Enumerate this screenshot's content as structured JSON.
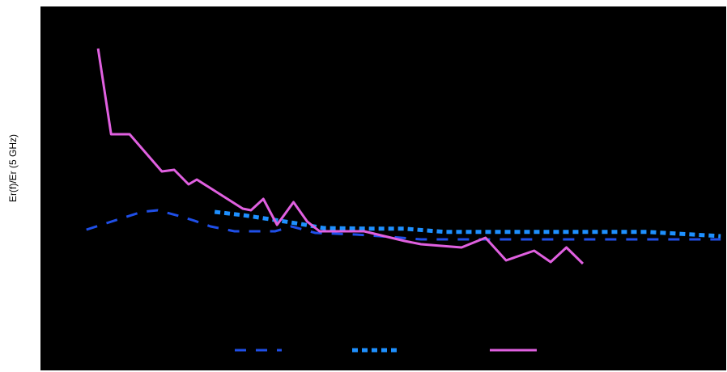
{
  "chart_data": {
    "type": "line",
    "ylabel": "Er(f)/Er (5 GHz)",
    "xlim": [
      0,
      100
    ],
    "ylim": [
      0.57,
      1.695
    ],
    "legend": "bottom",
    "background": "#000000",
    "series": [
      {
        "color": "#1f4fe8",
        "style": "dashed",
        "x": [
          6.7,
          8.9,
          11.8,
          14.8,
          17.1,
          20.1,
          22.4,
          24.8,
          28.3,
          34.2,
          36.6,
          40.1,
          46.0,
          50.8,
          55.5,
          62.6,
          76.7,
          99.2
        ],
        "values": [
          1.005,
          1.02,
          1.04,
          1.06,
          1.065,
          1.048,
          1.033,
          1.015,
          1.0,
          1.0,
          1.015,
          0.995,
          0.99,
          0.983,
          0.975,
          0.975,
          0.975,
          0.975
        ]
      },
      {
        "color": "#1e90ff",
        "style": "dotted",
        "x": [
          25.4,
          29.5,
          34.2,
          37.8,
          41.3,
          48.4,
          53.1,
          59.0,
          76.7,
          88.5,
          99.2
        ],
        "values": [
          1.06,
          1.05,
          1.035,
          1.023,
          1.01,
          1.008,
          1.008,
          0.998,
          0.998,
          0.998,
          0.985
        ]
      },
      {
        "color": "#e060e0",
        "style": "solid",
        "x": [
          8.4,
          10.3,
          13.0,
          17.7,
          19.5,
          21.6,
          22.8,
          29.5,
          30.7,
          32.5,
          34.5,
          36.9,
          38.9,
          40.7,
          47.2,
          53.1,
          55.5,
          61.4,
          64.9,
          67.9,
          72.0,
          74.4,
          76.7,
          79.1
        ],
        "values": [
          1.565,
          1.3,
          1.3,
          1.185,
          1.19,
          1.145,
          1.16,
          1.07,
          1.065,
          1.1,
          1.02,
          1.09,
          1.03,
          1.0,
          1.0,
          0.97,
          0.96,
          0.95,
          0.98,
          0.91,
          0.94,
          0.905,
          0.95,
          0.9
        ]
      }
    ]
  }
}
